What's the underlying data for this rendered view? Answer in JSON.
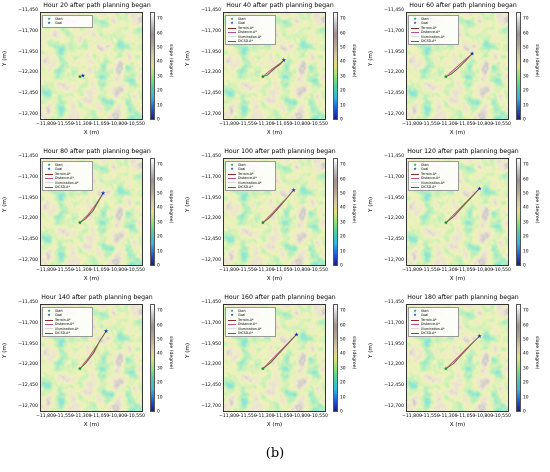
{
  "figure": {
    "caption": "(b)"
  },
  "colors": {
    "start": "#1a8c3a",
    "goal": "#1d2bbf",
    "terrain": "#8a2c2c",
    "distance": "#c24b8a",
    "illumination": "#d9d9d9",
    "dicsd": "#5a6b2a"
  },
  "chart_data": [
    {
      "type": "heatmap",
      "title": "Hour 20 after path planning began",
      "xlabel": "X (m)",
      "ylabel": "Y (m)",
      "colorbar_label": "slope (degree)",
      "x_ticks": [
        "−11,800",
        "−11,550",
        "−11,300",
        "−11,050",
        "−10,800",
        "−10,550"
      ],
      "y_ticks": [
        "−11,450",
        "−11,700",
        "−11,950",
        "−12,200",
        "−12,450",
        "−12,700"
      ],
      "colorbar_ticks": [
        "70",
        "60",
        "50",
        "40",
        "30",
        "20",
        "10",
        "0"
      ],
      "colorbar_range": [
        0,
        75
      ],
      "legend": [
        "Start",
        "Goal"
      ],
      "start": [
        -11330,
        -12180
      ],
      "goal": [
        -11290,
        -12170
      ],
      "paths": []
    },
    {
      "type": "heatmap",
      "title": "Hour 40 after path planning began",
      "xlabel": "X (m)",
      "ylabel": "Y (m)",
      "colorbar_label": "slope (degree)",
      "x_ticks": [
        "−11,800",
        "−11,550",
        "−11,300",
        "−11,050",
        "−10,800",
        "−10,550"
      ],
      "y_ticks": [
        "−11,450",
        "−11,700",
        "−11,950",
        "−12,200",
        "−12,450",
        "−12,700"
      ],
      "colorbar_ticks": [
        "70",
        "60",
        "50",
        "40",
        "30",
        "20",
        "10",
        "0"
      ],
      "colorbar_range": [
        0,
        75
      ],
      "legend": [
        "Start",
        "Goal",
        "Terrain-A*",
        "Distance-A*",
        "Illumination-A*",
        "DICSD-A*"
      ],
      "start": [
        -11330,
        -12180
      ],
      "goal": [
        -11050,
        -11980
      ],
      "paths": [
        {
          "name": "Terrain-A*",
          "x": [
            -11330,
            -11260,
            -11180,
            -11100,
            -11050
          ],
          "y": [
            -12180,
            -12150,
            -12090,
            -12030,
            -11980
          ]
        },
        {
          "name": "Distance-A*",
          "x": [
            -11330,
            -11240,
            -11150,
            -11050
          ],
          "y": [
            -12180,
            -12110,
            -12050,
            -11980
          ]
        },
        {
          "name": "Illumination-A*",
          "x": [
            -11330,
            -11250,
            -11160,
            -11090,
            -11050
          ],
          "y": [
            -12180,
            -12140,
            -12080,
            -12010,
            -11980
          ]
        },
        {
          "name": "DICSD-A*",
          "x": [
            -11330,
            -11270,
            -11200,
            -11120,
            -11050
          ],
          "y": [
            -12180,
            -12160,
            -12100,
            -12040,
            -11980
          ]
        }
      ]
    },
    {
      "type": "heatmap",
      "title": "Hour 60 after path planning began",
      "xlabel": "X (m)",
      "ylabel": "Y (m)",
      "colorbar_label": "slope (degree)",
      "x_ticks": [
        "−11,800",
        "−11,550",
        "−11,300",
        "−11,050",
        "−10,800",
        "−10,550"
      ],
      "y_ticks": [
        "−11,450",
        "−11,700",
        "−11,950",
        "−12,200",
        "−12,450",
        "−12,700"
      ],
      "colorbar_ticks": [
        "70",
        "60",
        "50",
        "40",
        "30",
        "20",
        "10",
        "0"
      ],
      "colorbar_range": [
        0,
        75
      ],
      "legend": [
        "Start",
        "Goal",
        "Terrain-A*",
        "Distance-A*",
        "Illumination-A*",
        "DICSD-A*"
      ],
      "start": [
        -11330,
        -12180
      ],
      "goal": [
        -10980,
        -11900
      ],
      "paths": [
        {
          "name": "Terrain-A*",
          "x": [
            -11330,
            -11250,
            -11160,
            -11060,
            -10980
          ],
          "y": [
            -12180,
            -12140,
            -12070,
            -11980,
            -11900
          ]
        },
        {
          "name": "Distance-A*",
          "x": [
            -11330,
            -11230,
            -11120,
            -10980
          ],
          "y": [
            -12180,
            -12100,
            -12010,
            -11900
          ]
        },
        {
          "name": "Illumination-A*",
          "x": [
            -11330,
            -11240,
            -11140,
            -11040,
            -10980
          ],
          "y": [
            -12180,
            -12130,
            -12050,
            -11960,
            -11900
          ]
        },
        {
          "name": "DICSD-A*",
          "x": [
            -11330,
            -11260,
            -11170,
            -11070,
            -10980
          ],
          "y": [
            -12180,
            -12150,
            -12080,
            -11990,
            -11900
          ]
        }
      ]
    },
    {
      "type": "heatmap",
      "title": "Hour 80 after path planning began",
      "xlabel": "X (m)",
      "ylabel": "Y (m)",
      "colorbar_label": "slope (degree)",
      "x_ticks": [
        "−11,800",
        "−11,550",
        "−11,300",
        "−11,050",
        "−10,800",
        "−10,550"
      ],
      "y_ticks": [
        "−11,450",
        "−11,700",
        "−11,950",
        "−12,200",
        "−12,450",
        "−12,700"
      ],
      "colorbar_ticks": [
        "70",
        "60",
        "50",
        "40",
        "30",
        "20",
        "10",
        "0"
      ],
      "colorbar_range": [
        0,
        75
      ],
      "legend": [
        "Start",
        "Goal",
        "Terrain-A*",
        "Distance-A*",
        "Illumination-A*",
        "DICSD-A*"
      ],
      "start": [
        -11330,
        -12180
      ],
      "goal": [
        -11020,
        -11820
      ],
      "paths": [
        {
          "name": "Terrain-A*",
          "x": [
            -11330,
            -11240,
            -11150,
            -11080,
            -11020
          ],
          "y": [
            -12180,
            -12120,
            -12030,
            -11920,
            -11820
          ]
        },
        {
          "name": "Distance-A*",
          "x": [
            -11330,
            -11220,
            -11120,
            -11020
          ],
          "y": [
            -12180,
            -12080,
            -11960,
            -11820
          ]
        },
        {
          "name": "Illumination-A*",
          "x": [
            -11330,
            -11230,
            -11140,
            -11070,
            -11020
          ],
          "y": [
            -12180,
            -12110,
            -12010,
            -11900,
            -11820
          ]
        },
        {
          "name": "DICSD-A*",
          "x": [
            -11330,
            -11250,
            -11160,
            -11090,
            -11020
          ],
          "y": [
            -12180,
            -12130,
            -12040,
            -11930,
            -11820
          ]
        }
      ]
    },
    {
      "type": "heatmap",
      "title": "Hour 100 after path planning began",
      "xlabel": "X (m)",
      "ylabel": "Y (m)",
      "colorbar_label": "slope (degree)",
      "x_ticks": [
        "−11,800",
        "−11,550",
        "−11,300",
        "−11,050",
        "−10,800",
        "−10,550"
      ],
      "y_ticks": [
        "−11,450",
        "−11,700",
        "−11,950",
        "−12,200",
        "−12,450",
        "−12,700"
      ],
      "colorbar_ticks": [
        "70",
        "60",
        "50",
        "40",
        "30",
        "20",
        "10",
        "0"
      ],
      "colorbar_range": [
        0,
        75
      ],
      "legend": [
        "Start",
        "Goal",
        "Terrain-A*",
        "Distance-A*",
        "Illumination-A*",
        "DICSD-A*"
      ],
      "start": [
        -11330,
        -12180
      ],
      "goal": [
        -10920,
        -11780
      ],
      "paths": [
        {
          "name": "Terrain-A*",
          "x": [
            -11330,
            -11230,
            -11130,
            -11020,
            -10920
          ],
          "y": [
            -12180,
            -12110,
            -12010,
            -11890,
            -11780
          ]
        },
        {
          "name": "Distance-A*",
          "x": [
            -11330,
            -11200,
            -11060,
            -10920
          ],
          "y": [
            -12180,
            -12060,
            -11920,
            -11780
          ]
        },
        {
          "name": "Illumination-A*",
          "x": [
            -11330,
            -11220,
            -11110,
            -11010,
            -10920
          ],
          "y": [
            -12180,
            -12100,
            -11990,
            -11870,
            -11780
          ]
        },
        {
          "name": "DICSD-A*",
          "x": [
            -11330,
            -11240,
            -11140,
            -11030,
            -10920
          ],
          "y": [
            -12180,
            -12120,
            -12020,
            -11900,
            -11780
          ]
        }
      ]
    },
    {
      "type": "heatmap",
      "title": "Hour 120 after path planning began",
      "xlabel": "X (m)",
      "ylabel": "Y (m)",
      "colorbar_label": "slope (degree)",
      "x_ticks": [
        "−11,800",
        "−11,550",
        "−11,300",
        "−11,050",
        "−10,800",
        "−10,550"
      ],
      "y_ticks": [
        "−11,450",
        "−11,700",
        "−11,950",
        "−12,200",
        "−12,450",
        "−12,700"
      ],
      "colorbar_ticks": [
        "70",
        "60",
        "50",
        "40",
        "30",
        "20",
        "10",
        "0"
      ],
      "colorbar_range": [
        0,
        75
      ],
      "legend": [
        "Start",
        "Goal",
        "Terrain-A*",
        "Distance-A*",
        "Illumination-A*",
        "DICSD-A*"
      ],
      "start": [
        -11330,
        -12180
      ],
      "goal": [
        -10880,
        -11760
      ],
      "paths": [
        {
          "name": "Terrain-A*",
          "x": [
            -11330,
            -11220,
            -11110,
            -10990,
            -10880
          ],
          "y": [
            -12180,
            -12100,
            -11990,
            -11870,
            -11760
          ]
        },
        {
          "name": "Distance-A*",
          "x": [
            -11330,
            -11180,
            -11030,
            -10880
          ],
          "y": [
            -12180,
            -12040,
            -11900,
            -11760
          ]
        },
        {
          "name": "Illumination-A*",
          "x": [
            -11330,
            -11210,
            -11100,
            -10980,
            -10880
          ],
          "y": [
            -12180,
            -12090,
            -11980,
            -11860,
            -11760
          ]
        },
        {
          "name": "DICSD-A*",
          "x": [
            -11330,
            -11230,
            -11120,
            -11000,
            -10880
          ],
          "y": [
            -12180,
            -12110,
            -12000,
            -11880,
            -11760
          ]
        }
      ]
    },
    {
      "type": "heatmap",
      "title": "Hour 140 after path planning began",
      "xlabel": "X (m)",
      "ylabel": "Y (m)",
      "colorbar_label": "slope (degree)",
      "x_ticks": [
        "−11,800",
        "−11,550",
        "−11,300",
        "−11,050",
        "−10,800",
        "−10,550"
      ],
      "y_ticks": [
        "−11,450",
        "−11,700",
        "−11,950",
        "−12,200",
        "−12,450",
        "−12,700"
      ],
      "colorbar_ticks": [
        "70",
        "60",
        "50",
        "40",
        "30",
        "20",
        "10",
        "0"
      ],
      "colorbar_range": [
        0,
        75
      ],
      "legend": [
        "Start",
        "Goal",
        "Terrain-A*",
        "Distance-A*",
        "Illumination-A*",
        "DICSD-A*"
      ],
      "start": [
        -11330,
        -12180
      ],
      "goal": [
        -10980,
        -11720
      ],
      "paths": [
        {
          "name": "Terrain-A*",
          "x": [
            -11330,
            -11240,
            -11140,
            -11060,
            -10980
          ],
          "y": [
            -12180,
            -12100,
            -11980,
            -11840,
            -11720
          ]
        },
        {
          "name": "Distance-A*",
          "x": [
            -11330,
            -11210,
            -11090,
            -10980
          ],
          "y": [
            -12180,
            -12040,
            -11880,
            -11720
          ]
        },
        {
          "name": "Illumination-A*",
          "x": [
            -11330,
            -11230,
            -11130,
            -11050,
            -10980
          ],
          "y": [
            -12180,
            -12090,
            -11960,
            -11830,
            -11720
          ]
        },
        {
          "name": "DICSD-A*",
          "x": [
            -11330,
            -11250,
            -11150,
            -11070,
            -10980
          ],
          "y": [
            -12180,
            -12110,
            -11990,
            -11850,
            -11720
          ]
        }
      ]
    },
    {
      "type": "heatmap",
      "title": "Hour 160 after path planning began",
      "xlabel": "X (m)",
      "ylabel": "Y (m)",
      "colorbar_label": "slope (degree)",
      "x_ticks": [
        "−11,800",
        "−11,550",
        "−11,300",
        "−11,050",
        "−10,800",
        "−10,550"
      ],
      "y_ticks": [
        "−11,450",
        "−11,700",
        "−11,950",
        "−12,200",
        "−12,450",
        "−12,700"
      ],
      "colorbar_ticks": [
        "70",
        "60",
        "50",
        "40",
        "30",
        "20",
        "10",
        "0"
      ],
      "colorbar_range": [
        0,
        75
      ],
      "legend": [
        "Start",
        "Goal",
        "Terrain-A*",
        "Distance-A*",
        "Illumination-A*",
        "DICSD-A*"
      ],
      "start": [
        -11330,
        -12180
      ],
      "goal": [
        -10880,
        -11760
      ],
      "paths": [
        {
          "name": "Terrain-A*",
          "x": [
            -11330,
            -11220,
            -11110,
            -10990,
            -10880
          ],
          "y": [
            -12180,
            -12100,
            -11990,
            -11870,
            -11760
          ]
        },
        {
          "name": "Distance-A*",
          "x": [
            -11330,
            -11180,
            -11030,
            -10880
          ],
          "y": [
            -12180,
            -12040,
            -11900,
            -11760
          ]
        },
        {
          "name": "Illumination-A*",
          "x": [
            -11330,
            -11210,
            -11100,
            -10980,
            -10880
          ],
          "y": [
            -12180,
            -12090,
            -11980,
            -11860,
            -11760
          ]
        },
        {
          "name": "DICSD-A*",
          "x": [
            -11330,
            -11230,
            -11120,
            -11000,
            -10880
          ],
          "y": [
            -12180,
            -12110,
            -12000,
            -11880,
            -11760
          ]
        }
      ]
    },
    {
      "type": "heatmap",
      "title": "Hour 180 after path planning began",
      "xlabel": "X (m)",
      "ylabel": "Y (m)",
      "colorbar_label": "slope (degree)",
      "x_ticks": [
        "−11,800",
        "−11,550",
        "−11,300",
        "−11,050",
        "−10,800",
        "−10,550"
      ],
      "y_ticks": [
        "−11,450",
        "−11,700",
        "−11,950",
        "−12,200",
        "−12,450",
        "−12,700"
      ],
      "colorbar_ticks": [
        "70",
        "60",
        "50",
        "40",
        "30",
        "20",
        "10",
        "0"
      ],
      "colorbar_range": [
        0,
        75
      ],
      "legend": [
        "Start",
        "Goal",
        "Terrain-A*",
        "Distance-A*",
        "Illumination-A*",
        "DICSD-A*"
      ],
      "start": [
        -11330,
        -12180
      ],
      "goal": [
        -10880,
        -11780
      ],
      "paths": [
        {
          "name": "Terrain-A*",
          "x": [
            -11330,
            -11220,
            -11110,
            -10990,
            -10880
          ],
          "y": [
            -12180,
            -12110,
            -12000,
            -11880,
            -11780
          ]
        },
        {
          "name": "Distance-A*",
          "x": [
            -11330,
            -11180,
            -11030,
            -10880
          ],
          "y": [
            -12180,
            -12050,
            -11910,
            -11780
          ]
        },
        {
          "name": "Illumination-A*",
          "x": [
            -11330,
            -11210,
            -11100,
            -10980,
            -10880
          ],
          "y": [
            -12180,
            -12100,
            -11990,
            -11870,
            -11780
          ]
        },
        {
          "name": "DICSD-A*",
          "x": [
            -11330,
            -11230,
            -11120,
            -11000,
            -10880
          ],
          "y": [
            -12180,
            -12120,
            -12010,
            -11890,
            -11780
          ]
        }
      ]
    }
  ]
}
